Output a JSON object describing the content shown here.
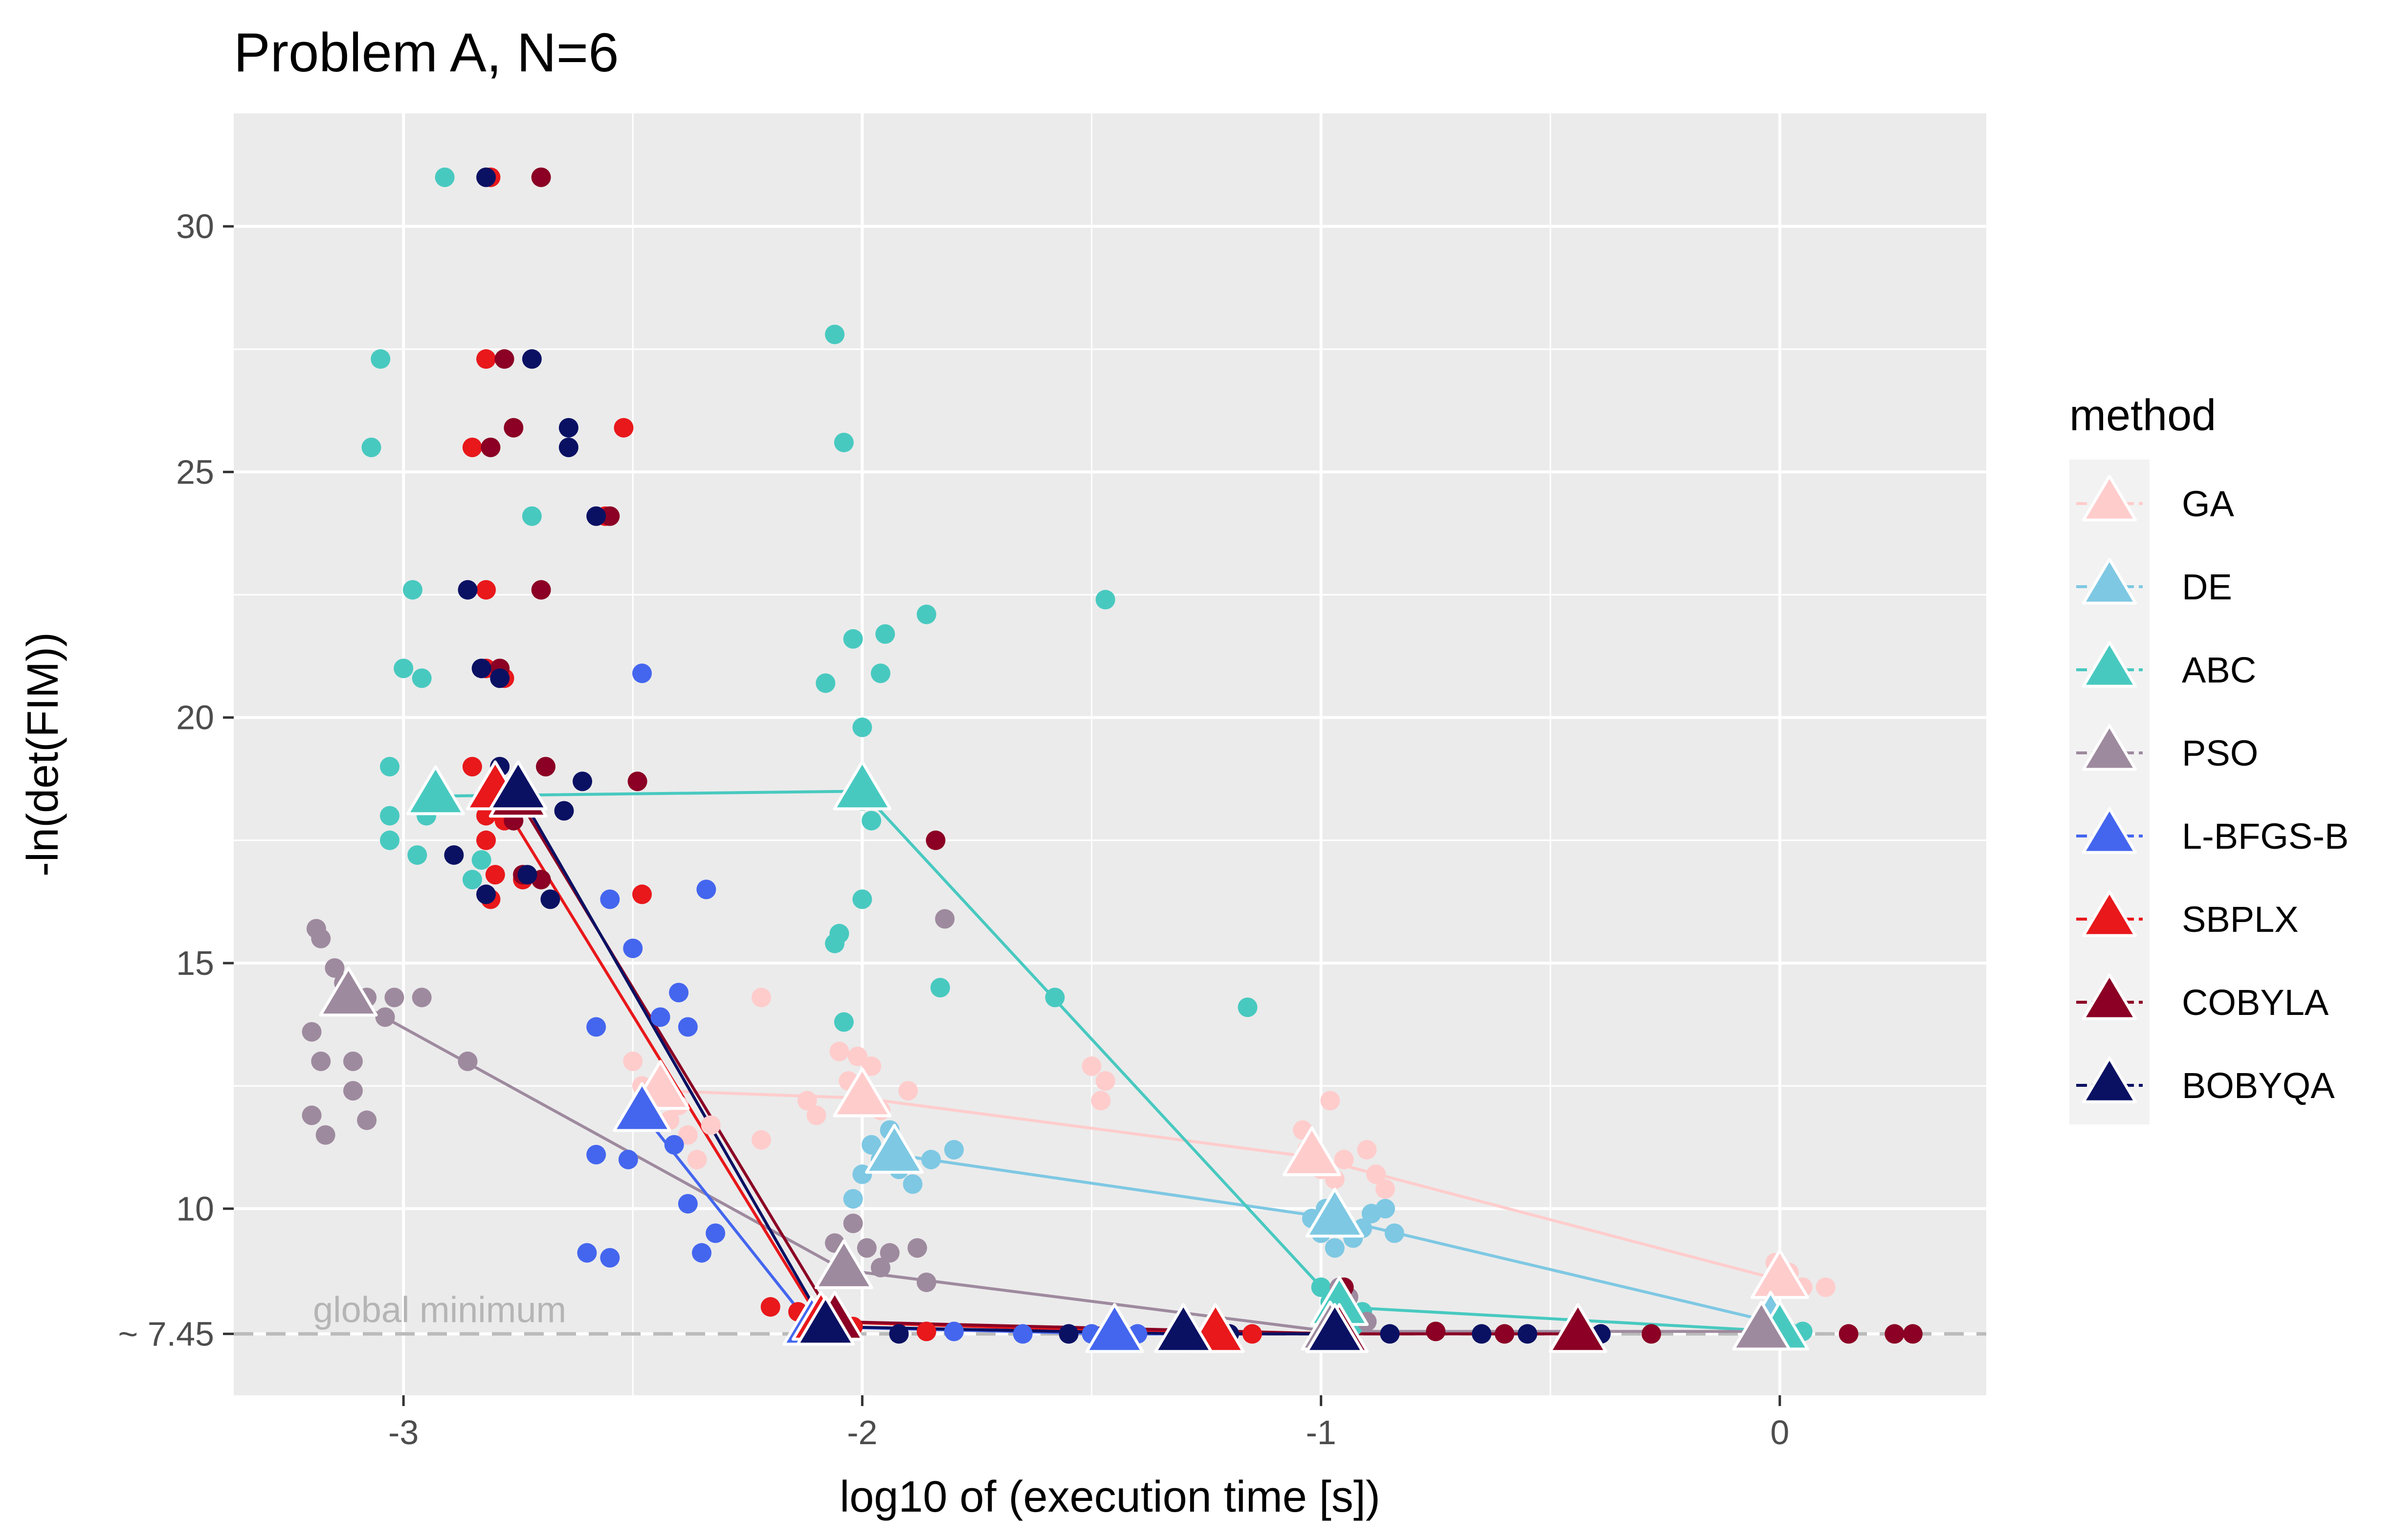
{
  "chart_data": {
    "type": "scatter",
    "title": "Problem A, N=6",
    "xlabel": "log10 of (execution time [s])",
    "ylabel": "-ln(det(FIM))",
    "xlim": [
      -3.37,
      0.45
    ],
    "ylim": [
      6.2,
      32.3
    ],
    "xticks": [
      -3,
      -2,
      -1,
      0
    ],
    "xtick_labels": [
      "-3",
      "-2",
      "-1",
      "0"
    ],
    "yticks": [
      7.45,
      10,
      15,
      20,
      25,
      30
    ],
    "ytick_labels": [
      "~ 7.45",
      "10",
      "15",
      "20",
      "25",
      "30"
    ],
    "minor_x": [
      -2.5,
      -1.5,
      -0.5
    ],
    "minor_y": [
      12.5,
      17.5,
      22.5,
      27.5
    ],
    "grid": true,
    "reference_line": {
      "y": 7.45,
      "label": "global minimum",
      "style": "dashed"
    },
    "legend": {
      "title": "method",
      "position": "right"
    },
    "series": [
      {
        "name": "GA",
        "color": "#FFCCCC",
        "mean_path": [
          [
            -2.44,
            12.4
          ],
          [
            -2.0,
            12.25
          ],
          [
            -1.02,
            11.05
          ],
          [
            0.0,
            8.55
          ]
        ],
        "points": [
          [
            -2.5,
            13.0
          ],
          [
            -2.48,
            12.5
          ],
          [
            -2.45,
            12.3
          ],
          [
            -2.42,
            11.8
          ],
          [
            -2.4,
            12.1
          ],
          [
            -2.38,
            11.5
          ],
          [
            -2.36,
            11.0
          ],
          [
            -2.33,
            11.7
          ],
          [
            -2.22,
            14.3
          ],
          [
            -2.22,
            11.4
          ],
          [
            -2.12,
            12.2
          ],
          [
            -2.1,
            11.9
          ],
          [
            -2.05,
            13.2
          ],
          [
            -2.03,
            12.6
          ],
          [
            -2.01,
            13.1
          ],
          [
            -1.98,
            12.9
          ],
          [
            -1.96,
            12.0
          ],
          [
            -1.9,
            12.4
          ],
          [
            -1.5,
            12.9
          ],
          [
            -1.48,
            12.2
          ],
          [
            -1.47,
            12.6
          ],
          [
            -1.04,
            11.6
          ],
          [
            -1.03,
            11.2
          ],
          [
            -1.0,
            10.8
          ],
          [
            -0.98,
            12.2
          ],
          [
            -0.97,
            10.6
          ],
          [
            -0.95,
            11.0
          ],
          [
            -0.9,
            11.2
          ],
          [
            -0.88,
            10.7
          ],
          [
            -0.86,
            10.4
          ],
          [
            -0.01,
            8.9
          ],
          [
            0.02,
            8.7
          ],
          [
            0.05,
            8.4
          ],
          [
            0.1,
            8.4
          ]
        ]
      },
      {
        "name": "DE",
        "color": "#7EC8E3",
        "mean_path": [
          [
            -1.93,
            11.1
          ],
          [
            -0.97,
            9.8
          ],
          [
            -0.02,
            7.7
          ]
        ],
        "points": [
          [
            -2.02,
            10.2
          ],
          [
            -2.0,
            10.7
          ],
          [
            -1.98,
            11.3
          ],
          [
            -1.96,
            11.0
          ],
          [
            -1.94,
            11.6
          ],
          [
            -1.92,
            10.8
          ],
          [
            -1.89,
            10.5
          ],
          [
            -1.85,
            11.0
          ],
          [
            -1.8,
            11.2
          ],
          [
            -1.02,
            9.8
          ],
          [
            -1.0,
            9.5
          ],
          [
            -0.99,
            10.0
          ],
          [
            -0.97,
            9.2
          ],
          [
            -0.95,
            9.7
          ],
          [
            -0.93,
            9.4
          ],
          [
            -0.91,
            9.6
          ],
          [
            -0.89,
            9.9
          ],
          [
            -0.86,
            10.0
          ],
          [
            -0.84,
            9.5
          ],
          [
            -0.04,
            7.75
          ],
          [
            -0.02,
            7.6
          ],
          [
            0.0,
            7.55
          ],
          [
            0.02,
            7.5
          ]
        ]
      },
      {
        "name": "ABC",
        "color": "#48C9C0",
        "mean_path": [
          [
            -2.93,
            18.4
          ],
          [
            -2.0,
            18.5
          ],
          [
            -0.96,
            8.0
          ],
          [
            0.0,
            7.5
          ]
        ],
        "points": [
          [
            -3.05,
            27.3
          ],
          [
            -3.07,
            25.5
          ],
          [
            -2.98,
            22.6
          ],
          [
            -3.0,
            21.0
          ],
          [
            -2.96,
            20.8
          ],
          [
            -3.03,
            19.0
          ],
          [
            -3.03,
            18.0
          ],
          [
            -3.03,
            17.5
          ],
          [
            -2.97,
            17.2
          ],
          [
            -2.95,
            18.0
          ],
          [
            -2.91,
            31.0
          ],
          [
            -2.85,
            16.7
          ],
          [
            -2.83,
            17.1
          ],
          [
            -2.72,
            24.1
          ],
          [
            -2.06,
            27.8
          ],
          [
            -2.04,
            25.6
          ],
          [
            -2.08,
            20.7
          ],
          [
            -2.02,
            21.6
          ],
          [
            -1.95,
            21.7
          ],
          [
            -1.86,
            22.1
          ],
          [
            -1.96,
            20.9
          ],
          [
            -2.0,
            19.8
          ],
          [
            -2.0,
            18.3
          ],
          [
            -1.98,
            17.9
          ],
          [
            -2.0,
            16.3
          ],
          [
            -2.06,
            15.4
          ],
          [
            -2.05,
            15.6
          ],
          [
            -2.04,
            13.8
          ],
          [
            -1.83,
            14.5
          ],
          [
            -1.58,
            14.3
          ],
          [
            -1.47,
            22.4
          ],
          [
            -1.16,
            14.1
          ],
          [
            -1.0,
            8.4
          ],
          [
            -0.98,
            8.1
          ],
          [
            -0.96,
            7.8
          ],
          [
            -0.93,
            7.6
          ],
          [
            -0.91,
            7.9
          ],
          [
            -0.03,
            7.5
          ],
          [
            0.05,
            7.5
          ]
        ]
      },
      {
        "name": "PSO",
        "color": "#9E8A9E",
        "mean_path": [
          [
            -3.12,
            14.3
          ],
          [
            -2.04,
            8.75
          ],
          [
            -0.98,
            7.5
          ],
          [
            -0.04,
            7.5
          ]
        ],
        "points": [
          [
            -3.19,
            15.7
          ],
          [
            -3.18,
            15.5
          ],
          [
            -3.15,
            14.9
          ],
          [
            -3.13,
            14.6
          ],
          [
            -3.08,
            14.3
          ],
          [
            -3.02,
            14.3
          ],
          [
            -2.96,
            14.3
          ],
          [
            -3.04,
            13.9
          ],
          [
            -3.2,
            13.6
          ],
          [
            -3.18,
            13.0
          ],
          [
            -3.11,
            13.0
          ],
          [
            -3.11,
            12.4
          ],
          [
            -3.2,
            11.9
          ],
          [
            -3.17,
            11.5
          ],
          [
            -3.08,
            11.8
          ],
          [
            -2.86,
            13.0
          ],
          [
            -1.82,
            15.9
          ],
          [
            -2.06,
            9.3
          ],
          [
            -2.02,
            9.7
          ],
          [
            -1.99,
            9.2
          ],
          [
            -1.96,
            8.8
          ],
          [
            -1.94,
            9.1
          ],
          [
            -1.88,
            9.2
          ],
          [
            -1.86,
            8.5
          ],
          [
            -0.96,
            8.4
          ],
          [
            -0.94,
            8.2
          ],
          [
            -0.9,
            7.7
          ],
          [
            -0.05,
            7.5
          ]
        ]
      },
      {
        "name": "L-BFGS-B",
        "color": "#4466EE",
        "mean_path": [
          [
            -2.48,
            11.95
          ],
          [
            -2.11,
            7.6
          ],
          [
            -1.45,
            7.45
          ],
          [
            -0.97,
            7.45
          ]
        ],
        "points": [
          [
            -2.48,
            20.9
          ],
          [
            -2.55,
            16.3
          ],
          [
            -2.34,
            16.5
          ],
          [
            -2.5,
            15.3
          ],
          [
            -2.4,
            14.4
          ],
          [
            -2.44,
            13.9
          ],
          [
            -2.38,
            13.7
          ],
          [
            -2.58,
            13.7
          ],
          [
            -2.41,
            11.3
          ],
          [
            -2.58,
            11.1
          ],
          [
            -2.51,
            11.0
          ],
          [
            -2.38,
            10.1
          ],
          [
            -2.32,
            9.5
          ],
          [
            -2.35,
            9.1
          ],
          [
            -2.6,
            9.1
          ],
          [
            -2.55,
            9.0
          ],
          [
            -1.8,
            7.5
          ],
          [
            -1.65,
            7.45
          ],
          [
            -1.55,
            7.45
          ],
          [
            -1.5,
            7.45
          ],
          [
            -1.4,
            7.45
          ]
        ]
      },
      {
        "name": "SBPLX",
        "color": "#E8181B",
        "mean_path": [
          [
            -2.8,
            18.5
          ],
          [
            -2.09,
            7.7
          ],
          [
            -1.23,
            7.45
          ],
          [
            -0.97,
            7.45
          ]
        ],
        "points": [
          [
            -2.81,
            31.0
          ],
          [
            -2.82,
            27.3
          ],
          [
            -2.85,
            25.5
          ],
          [
            -2.52,
            25.9
          ],
          [
            -2.82,
            22.6
          ],
          [
            -2.82,
            21.0
          ],
          [
            -2.78,
            20.8
          ],
          [
            -2.85,
            19.0
          ],
          [
            -2.82,
            18.0
          ],
          [
            -2.78,
            17.9
          ],
          [
            -2.82,
            17.5
          ],
          [
            -2.8,
            16.8
          ],
          [
            -2.81,
            16.3
          ],
          [
            -2.74,
            16.7
          ],
          [
            -2.56,
            24.1
          ],
          [
            -2.48,
            16.4
          ],
          [
            -2.2,
            8.0
          ],
          [
            -2.14,
            7.9
          ],
          [
            -2.08,
            7.7
          ],
          [
            -2.02,
            7.6
          ],
          [
            -1.86,
            7.5
          ],
          [
            -1.3,
            7.45
          ],
          [
            -1.15,
            7.45
          ]
        ]
      },
      {
        "name": "COBYLA",
        "color": "#8B0024",
        "mean_path": [
          [
            -2.75,
            18.35
          ],
          [
            -2.06,
            7.7
          ],
          [
            -0.96,
            7.45
          ],
          [
            -0.44,
            7.45
          ]
        ],
        "points": [
          [
            -2.7,
            31.0
          ],
          [
            -2.78,
            27.3
          ],
          [
            -2.76,
            25.9
          ],
          [
            -2.81,
            25.5
          ],
          [
            -2.7,
            22.6
          ],
          [
            -2.79,
            21.0
          ],
          [
            -2.69,
            19.0
          ],
          [
            -2.76,
            17.9
          ],
          [
            -2.74,
            16.8
          ],
          [
            -2.7,
            16.7
          ],
          [
            -2.55,
            24.1
          ],
          [
            -2.49,
            18.7
          ],
          [
            -1.84,
            17.5
          ],
          [
            -0.95,
            8.4
          ],
          [
            -0.75,
            7.5
          ],
          [
            -0.6,
            7.45
          ],
          [
            -0.28,
            7.45
          ],
          [
            0.15,
            7.45
          ],
          [
            0.25,
            7.45
          ],
          [
            0.29,
            7.45
          ]
        ]
      },
      {
        "name": "BOBYQA",
        "color": "#0A1163",
        "mean_path": [
          [
            -2.75,
            18.5
          ],
          [
            -2.08,
            7.6
          ],
          [
            -1.3,
            7.45
          ],
          [
            -0.97,
            7.45
          ]
        ],
        "points": [
          [
            -2.82,
            31.0
          ],
          [
            -2.72,
            27.3
          ],
          [
            -2.64,
            25.9
          ],
          [
            -2.64,
            25.5
          ],
          [
            -2.58,
            24.1
          ],
          [
            -2.86,
            22.6
          ],
          [
            -2.83,
            21.0
          ],
          [
            -2.79,
            20.8
          ],
          [
            -2.79,
            19.0
          ],
          [
            -2.61,
            18.7
          ],
          [
            -2.65,
            18.1
          ],
          [
            -2.89,
            17.2
          ],
          [
            -2.82,
            16.4
          ],
          [
            -2.73,
            16.8
          ],
          [
            -2.68,
            16.3
          ],
          [
            -2.13,
            7.5
          ],
          [
            -2.05,
            7.5
          ],
          [
            -1.92,
            7.45
          ],
          [
            -1.55,
            7.45
          ],
          [
            -1.2,
            7.45
          ],
          [
            -0.85,
            7.45
          ],
          [
            -0.65,
            7.45
          ],
          [
            -0.55,
            7.45
          ],
          [
            -0.39,
            7.45
          ]
        ]
      }
    ]
  }
}
